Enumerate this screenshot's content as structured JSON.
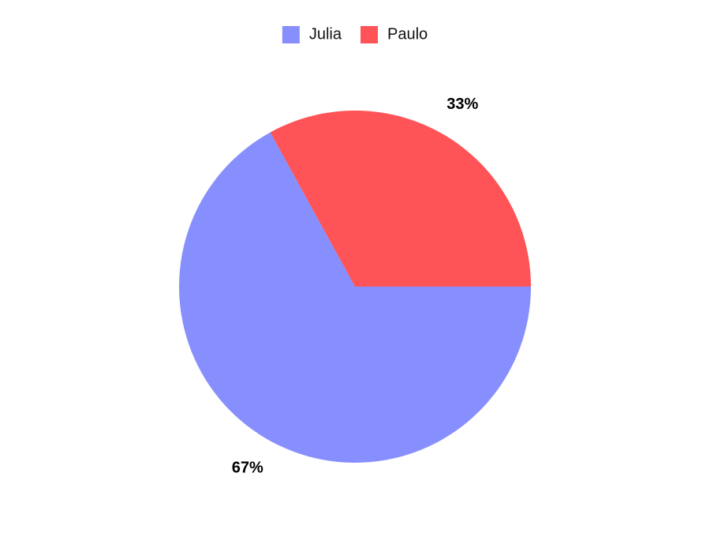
{
  "chart_data": {
    "type": "pie",
    "title": "",
    "categories": [
      "Julia",
      "Paulo"
    ],
    "values": [
      67,
      33
    ],
    "value_labels": [
      "67%",
      "33%"
    ],
    "colors": [
      "#878ffe",
      "#fe5357"
    ],
    "legend": {
      "position": "top-center",
      "entries": [
        "Julia",
        "Paulo"
      ]
    },
    "start_direction": "east",
    "sweep": "clockwise"
  }
}
